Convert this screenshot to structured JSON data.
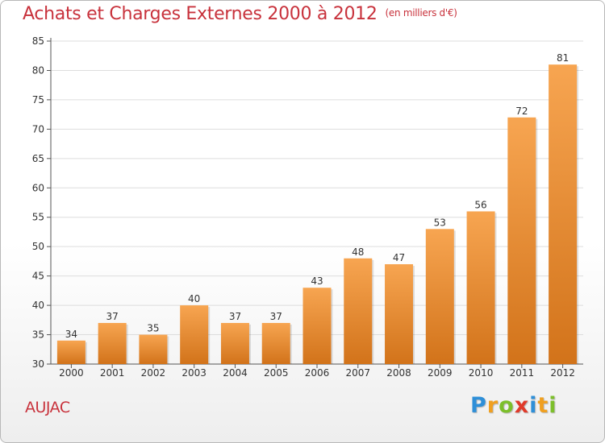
{
  "header": {
    "title": "Achats et Charges Externes 2000 à 2012",
    "subtitle": "(en milliers d'€)"
  },
  "commune": "AUJAC",
  "brand": {
    "text": "Proxiti",
    "letters": [
      {
        "ch": "P",
        "color": "#2e8fd8"
      },
      {
        "ch": "r",
        "color": "#f0a020"
      },
      {
        "ch": "o",
        "color": "#7cbf2a"
      },
      {
        "ch": "x",
        "color": "#e03a2a"
      },
      {
        "ch": "i",
        "color": "#2e8fd8"
      },
      {
        "ch": "t",
        "color": "#f0a020"
      },
      {
        "ch": "i",
        "color": "#7cbf2a"
      }
    ]
  },
  "colors": {
    "bar_top": "#f7a551",
    "bar_bottom": "#d2731a",
    "title": "#c8323c",
    "grid": "#dddddd"
  },
  "chart_data": {
    "type": "bar",
    "categories": [
      "2000",
      "2001",
      "2002",
      "2003",
      "2004",
      "2005",
      "2006",
      "2007",
      "2008",
      "2009",
      "2010",
      "2011",
      "2012"
    ],
    "values": [
      34,
      37,
      35,
      40,
      37,
      37,
      43,
      48,
      47,
      53,
      56,
      72,
      81
    ],
    "ylim": [
      30,
      85
    ],
    "yticks": [
      30,
      35,
      40,
      45,
      50,
      55,
      60,
      65,
      70,
      75,
      80,
      85
    ],
    "xlabel": "",
    "ylabel": "",
    "grid": "horizontal",
    "data_labels": true
  }
}
